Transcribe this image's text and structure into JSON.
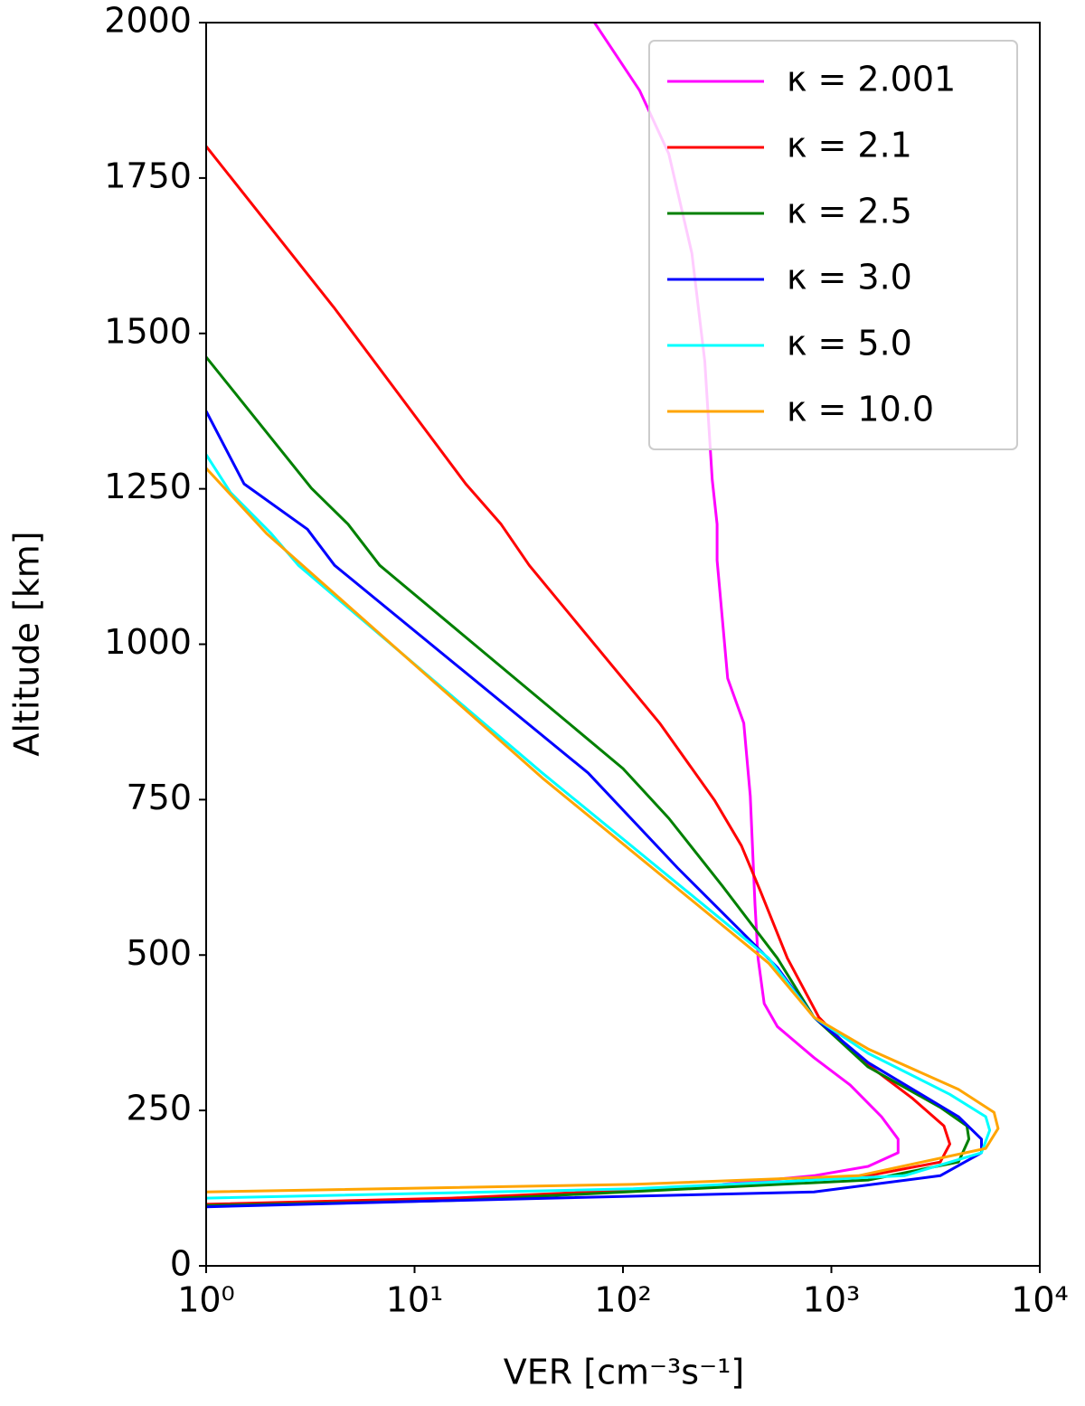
{
  "chart_data": {
    "type": "line",
    "xlabel": "VER [cm⁻³s⁻¹]",
    "ylabel": "Altitude [km]",
    "xscale": "log",
    "xlim": [
      1,
      10000
    ],
    "xticks": [
      {
        "value": 1,
        "label": "10⁰"
      },
      {
        "value": 10,
        "label": "10¹"
      },
      {
        "value": 100,
        "label": "10²"
      },
      {
        "value": 1000,
        "label": "10³"
      },
      {
        "value": 10000,
        "label": "10⁴"
      }
    ],
    "ylim": [
      0,
      2000
    ],
    "yticks": [
      0,
      250,
      500,
      750,
      1000,
      1250,
      1500,
      1750,
      2000
    ],
    "grid": false,
    "legend": "upper right",
    "series": [
      {
        "name": "κ = 2.001",
        "color": "#ff00ff",
        "x": [
          73,
          120,
          166,
          214,
          247,
          268,
          283,
          283,
          318,
          380,
          408,
          430,
          445,
          476,
          550,
          825,
          1230,
          1740,
          2090,
          2090,
          1500,
          825,
          300
        ],
        "y": [
          2000,
          1891,
          1789,
          1629,
          1455,
          1265,
          1193,
          1135,
          945,
          873,
          756,
          582,
          495,
          422,
          385,
          335,
          291,
          240,
          204,
          182,
          160,
          145,
          131
        ]
      },
      {
        "name": "κ = 2.1",
        "color": "#ff0000",
        "x": [
          1,
          4.1,
          17.6,
          26,
          35.5,
          150,
          275,
          370,
          455,
          615,
          870,
          1350,
          2460,
          3470,
          3700,
          3330,
          1500,
          300,
          15,
          1
        ],
        "y": [
          1801,
          1542,
          1258,
          1193,
          1127,
          873,
          749,
          676,
          604,
          495,
          400,
          335,
          269,
          225,
          196,
          167,
          145,
          128,
          109,
          99
        ]
      },
      {
        "name": "κ = 2.5",
        "color": "#008000",
        "x": [
          1,
          3.2,
          4.8,
          6.8,
          100,
          166,
          300,
          550,
          825,
          1500,
          3330,
          4470,
          4570,
          4070,
          1500,
          15,
          1
        ],
        "y": [
          1462,
          1251,
          1193,
          1127,
          800,
          720,
          611,
          495,
          400,
          320,
          255,
          225,
          204,
          167,
          138,
          105,
          97
        ]
      },
      {
        "name": "κ = 3.0",
        "color": "#0000ff",
        "x": [
          1,
          1.52,
          3.06,
          4.13,
          68,
          183,
          550,
          825,
          1500,
          4070,
          5250,
          5250,
          3330,
          825,
          15,
          1
        ],
        "y": [
          1375,
          1258,
          1185,
          1127,
          793,
          640,
          480,
          400,
          327,
          240,
          204,
          182,
          145,
          119,
          105,
          95
        ]
      },
      {
        "name": "κ = 5.0",
        "color": "#00ffff",
        "x": [
          1,
          1.31,
          2.05,
          2.77,
          41,
          500,
          825,
          1500,
          3700,
          5500,
          5750,
          5250,
          2240,
          112,
          1
        ],
        "y": [
          1305,
          1244,
          1178,
          1127,
          793,
          495,
          400,
          342,
          276,
          240,
          218,
          182,
          145,
          124,
          109
        ]
      },
      {
        "name": "κ = 10.0",
        "color": "#ffa500",
        "x": [
          1,
          1.95,
          41,
          500,
          825,
          1500,
          4070,
          6030,
          6310,
          5500,
          1350,
          112,
          1
        ],
        "y": [
          1283,
          1178,
          785,
          487,
          400,
          349,
          284,
          247,
          221,
          189,
          145,
          131,
          119
        ]
      }
    ]
  }
}
